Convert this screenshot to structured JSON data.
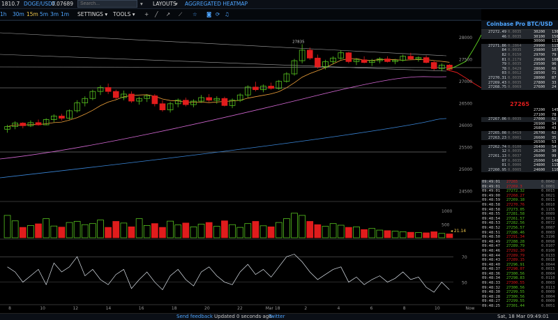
{
  "topbar": {
    "price": "1810.7",
    "symbol": "DOGE/USDT",
    "symbol_price": "0.07689",
    "search_placeholder": "Search...",
    "layouts_label": "LAYOUTS",
    "heatmap_label": "AGGREGATED HEATMAP"
  },
  "toolbar": {
    "timeframes": [
      "1h",
      "30m",
      "15m",
      "5m",
      "3m",
      "1m"
    ],
    "active_timeframe": "15m",
    "settings_label": "SETTINGS",
    "tools_label": "TOOLS",
    "icons": [
      "crosshair-icon",
      "line-icon",
      "ray-icon",
      "ruler-icon",
      "star-icon",
      "camera-icon",
      "refresh-icon",
      "bell-icon"
    ]
  },
  "colors": {
    "up": "#57c41f",
    "down": "#e01c1c",
    "ma_orange": "#f0a23a",
    "ma_pink": "#d569d5",
    "ma_blue": "#3a86d8",
    "trendline": "#cfcfcf",
    "link": "#4ea5ff"
  },
  "chart_data": {
    "type": "candlestick",
    "price_axis": [
      "28000",
      "27500",
      "27000",
      "26500",
      "26000",
      "25500",
      "25000",
      "24500"
    ],
    "ylim": [
      24500,
      28000
    ],
    "x_labels": [
      "8",
      "10",
      "12",
      "14",
      "16",
      "18",
      "20",
      "22",
      "Mar 18",
      "2",
      "4",
      "6",
      "8",
      "10",
      "Now"
    ],
    "annotation_high": "27835",
    "last_price": "27265",
    "candles": [
      [
        25900,
        26000,
        25820,
        25960
      ],
      [
        25960,
        26080,
        25900,
        26040
      ],
      [
        26040,
        26060,
        25920,
        25980
      ],
      [
        25980,
        26100,
        25950,
        26050
      ],
      [
        26050,
        26120,
        25980,
        26000
      ],
      [
        26000,
        26150,
        25990,
        26120
      ],
      [
        26120,
        26240,
        26060,
        26200
      ],
      [
        26200,
        26250,
        26100,
        26150
      ],
      [
        26150,
        26350,
        26120,
        26320
      ],
      [
        26320,
        26560,
        26280,
        26500
      ],
      [
        26500,
        26650,
        26420,
        26600
      ],
      [
        26600,
        26800,
        26560,
        26760
      ],
      [
        26760,
        26900,
        26680,
        26850
      ],
      [
        26850,
        26940,
        26700,
        26760
      ],
      [
        26760,
        26800,
        26580,
        26620
      ],
      [
        26620,
        26780,
        26560,
        26700
      ],
      [
        26700,
        26760,
        26500,
        26540
      ],
      [
        26540,
        26640,
        26460,
        26600
      ],
      [
        26600,
        26700,
        26520,
        26660
      ],
      [
        26660,
        26700,
        26420,
        26480
      ],
      [
        26480,
        26560,
        26300,
        26340
      ],
      [
        26340,
        26520,
        26280,
        26480
      ],
      [
        26480,
        26600,
        26400,
        26560
      ],
      [
        26560,
        26620,
        26420,
        26460
      ],
      [
        26460,
        26580,
        26400,
        26540
      ],
      [
        26540,
        26680,
        26500,
        26620
      ],
      [
        26620,
        26700,
        26520,
        26560
      ],
      [
        26560,
        26650,
        26480,
        26600
      ],
      [
        26600,
        26640,
        26420,
        26440
      ],
      [
        26440,
        26600,
        26380,
        26560
      ],
      [
        26560,
        26720,
        26520,
        26680
      ],
      [
        26680,
        26900,
        26620,
        26860
      ],
      [
        26860,
        26980,
        26760,
        26800
      ],
      [
        26800,
        26920,
        26740,
        26880
      ],
      [
        26880,
        26960,
        26800,
        26830
      ],
      [
        26830,
        27020,
        26800,
        26990
      ],
      [
        26990,
        27200,
        26960,
        27160
      ],
      [
        27160,
        27500,
        27120,
        27460
      ],
      [
        27460,
        27835,
        27400,
        27700
      ],
      [
        27700,
        27760,
        27480,
        27520
      ],
      [
        27520,
        27600,
        27280,
        27320
      ],
      [
        27320,
        27480,
        27260,
        27440
      ],
      [
        27440,
        27560,
        27380,
        27520
      ],
      [
        27520,
        27700,
        27480,
        27640
      ],
      [
        27640,
        27660,
        27400,
        27440
      ],
      [
        27440,
        27520,
        27360,
        27480
      ],
      [
        27480,
        27560,
        27400,
        27420
      ],
      [
        27420,
        27500,
        27340,
        27460
      ],
      [
        27460,
        27540,
        27400,
        27500
      ],
      [
        27500,
        27560,
        27420,
        27440
      ],
      [
        27440,
        27500,
        27380,
        27470
      ],
      [
        27470,
        27600,
        27440,
        27560
      ],
      [
        27560,
        27640,
        27480,
        27500
      ],
      [
        27500,
        27560,
        27440,
        27530
      ],
      [
        27530,
        27580,
        27400,
        27420
      ],
      [
        27420,
        27460,
        27240,
        27280
      ],
      [
        27280,
        27400,
        27220,
        27360
      ],
      [
        27360,
        27380,
        27240,
        27265
      ]
    ],
    "volume_axis": [
      "1000",
      "500"
    ],
    "volume_last": "21.14",
    "volume": [
      820,
      620,
      380,
      450,
      510,
      700,
      430,
      390,
      560,
      600,
      480,
      520,
      650,
      380,
      600,
      540,
      400,
      700,
      450,
      520,
      380,
      610,
      470,
      540,
      400,
      500,
      560,
      420,
      620,
      480,
      380,
      520,
      600,
      440,
      400,
      560,
      700,
      900,
      820,
      600,
      480,
      420,
      520,
      460,
      380,
      400,
      300,
      340,
      280,
      260,
      240,
      220,
      200,
      190,
      180,
      220,
      160,
      140
    ],
    "rsi_axis": [
      "70",
      "50"
    ],
    "rsi": [
      62,
      58,
      50,
      55,
      60,
      48,
      65,
      58,
      62,
      70,
      55,
      60,
      52,
      48,
      56,
      60,
      45,
      52,
      58,
      50,
      44,
      55,
      60,
      52,
      47,
      58,
      62,
      55,
      50,
      48,
      58,
      64,
      56,
      60,
      54,
      62,
      70,
      72,
      66,
      58,
      52,
      56,
      60,
      62,
      50,
      54,
      48,
      52,
      55,
      50,
      53,
      58,
      52,
      54,
      46,
      42,
      50,
      44
    ]
  },
  "orderbook": {
    "title": "Coinbase Pro BTC/USD",
    "asks": [
      {
        "price": "27272.49",
        "size": "0.0035",
        "vol": "30200",
        "count": "136"
      },
      {
        "price": "46",
        "size": "0.0035",
        "vol": "30100",
        "count": "156"
      },
      {
        "price": "",
        "size": "",
        "vol": "30000",
        "count": "113"
      },
      {
        "price": "27271.86",
        "size": "0.2864",
        "vol": "29900",
        "count": "115"
      },
      {
        "price": "84",
        "size": "0.0035",
        "vol": "29800",
        "count": "107"
      },
      {
        "price": "82",
        "size": "0.0150",
        "vol": "29700",
        "count": "79"
      },
      {
        "price": "81",
        "size": "0.2179",
        "vol": "29600",
        "count": "108"
      },
      {
        "price": "79",
        "size": "0.0035",
        "vol": "29500",
        "count": "96"
      },
      {
        "price": "78",
        "size": "0.0429",
        "vol": "28600",
        "count": "66"
      },
      {
        "price": "03",
        "size": "0.0012",
        "vol": "28500",
        "count": "71"
      },
      {
        "price": "27270.31",
        "size": "0.0035",
        "vol": "28000",
        "count": "87"
      },
      {
        "price": "27269.43",
        "size": "0.0035",
        "vol": "27800",
        "count": "33"
      },
      {
        "price": "27268.75",
        "size": "0.0069",
        "vol": "27600",
        "count": "24"
      }
    ],
    "mid_price": "27265",
    "bids": [
      {
        "price": "",
        "size": "",
        "vol": "27200",
        "count": "145"
      },
      {
        "price": "",
        "size": "",
        "vol": "27100",
        "count": "78"
      },
      {
        "price": "27267.06",
        "size": "0.0035",
        "vol": "27000",
        "count": "62"
      },
      {
        "price": "",
        "size": "",
        "vol": "26900",
        "count": "34"
      },
      {
        "price": "",
        "size": "",
        "vol": "26800",
        "count": "43"
      },
      {
        "price": "27265.08",
        "size": "0.0419",
        "vol": "26700",
        "count": "62"
      },
      {
        "price": "27263.23",
        "size": "0.0001",
        "vol": "26600",
        "count": "35"
      },
      {
        "price": "",
        "size": "",
        "vol": "26500",
        "count": "53"
      },
      {
        "price": "27262.74",
        "size": "0.0100",
        "vol": "26400",
        "count": "54"
      },
      {
        "price": "12",
        "size": "0.0035",
        "vol": "26200",
        "count": "30"
      },
      {
        "price": "27261.13",
        "size": "0.0037",
        "vol": "26000",
        "count": "99"
      },
      {
        "price": "07",
        "size": "0.0035",
        "vol": "25000",
        "count": "148"
      },
      {
        "price": "01",
        "size": "0.0006",
        "vol": "24800",
        "count": "115"
      },
      {
        "price": "27260.95",
        "size": "0.0005",
        "vol": "24600",
        "count": "110"
      }
    ]
  },
  "trades": [
    {
      "time": "09:49:01",
      "price": "27265",
      "size": "0.0042",
      "side": "sell"
    },
    {
      "time": "09:49:01",
      "price": "27269.3",
      "size": "0.0001",
      "side": "sell"
    },
    {
      "time": "09:49:01",
      "price": "27272.32",
      "size": "0.0015",
      "side": "buy"
    },
    {
      "time": "09:49:00",
      "price": "27268.27",
      "size": "0.0021",
      "side": "sell"
    },
    {
      "time": "09:48:59",
      "price": "27269.18",
      "size": "0.0011",
      "side": "buy"
    },
    {
      "time": "09:48:58",
      "price": "27270.76",
      "size": "0.0010",
      "side": "sell"
    },
    {
      "time": "09:48:58",
      "price": "27273.05",
      "size": "0.1155",
      "side": "buy"
    },
    {
      "time": "09:48:55",
      "price": "27281.58",
      "size": "0.0089",
      "side": "buy"
    },
    {
      "time": "09:48:54",
      "price": "27261.57",
      "size": "0.0013",
      "side": "buy"
    },
    {
      "time": "09:48:53",
      "price": "27282.56",
      "size": "0.0072",
      "side": "buy"
    },
    {
      "time": "09:48:52",
      "price": "27256.57",
      "size": "0.0087",
      "side": "buy"
    },
    {
      "time": "09:48:51",
      "price": "27286.46",
      "size": "0.0003",
      "side": "buy"
    },
    {
      "time": "09:48:50",
      "price": "27291.34",
      "size": "0.3196",
      "side": "sell"
    },
    {
      "time": "09:48:49",
      "price": "27288.28",
      "size": "0.0098",
      "side": "buy"
    },
    {
      "time": "09:48:47",
      "price": "27289.79",
      "size": "0.0107",
      "side": "buy"
    },
    {
      "time": "09:48:46",
      "price": "27292.30",
      "size": "0.0100",
      "side": "sell"
    },
    {
      "time": "09:48:44",
      "price": "27289.79",
      "size": "0.0133",
      "side": "sell"
    },
    {
      "time": "09:48:43",
      "price": "27289.15",
      "size": "0.0018",
      "side": "sell"
    },
    {
      "time": "09:48:40",
      "price": "27296.91",
      "size": "0.0044",
      "side": "buy"
    },
    {
      "time": "09:48:37",
      "price": "27298.07",
      "size": "0.0015",
      "side": "sell"
    },
    {
      "time": "09:48:36",
      "price": "27300.56",
      "size": "0.0004",
      "side": "buy"
    },
    {
      "time": "09:48:34",
      "price": "27298.83",
      "size": "0.0110",
      "side": "buy"
    },
    {
      "time": "09:48:33",
      "price": "27300.55",
      "size": "0.0003",
      "side": "sell"
    },
    {
      "time": "09:48:32",
      "price": "27300.56",
      "size": "0.0113",
      "side": "buy"
    },
    {
      "time": "09:48:30",
      "price": "27299.55",
      "size": "0.0009",
      "side": "buy"
    },
    {
      "time": "09:48:28",
      "price": "27300.56",
      "size": "0.0004",
      "side": "buy"
    },
    {
      "time": "09:48:27",
      "price": "27299.55",
      "size": "0.0009",
      "side": "buy"
    },
    {
      "time": "09:48:25",
      "price": "27301.44",
      "size": "0.0051",
      "side": "buy"
    }
  ],
  "footer": {
    "feedback": "Send feedback",
    "updated": "Updated 0 seconds ago",
    "twitter": "Twitter",
    "datetime": "Sat, 18 Mar 09:49:01"
  }
}
